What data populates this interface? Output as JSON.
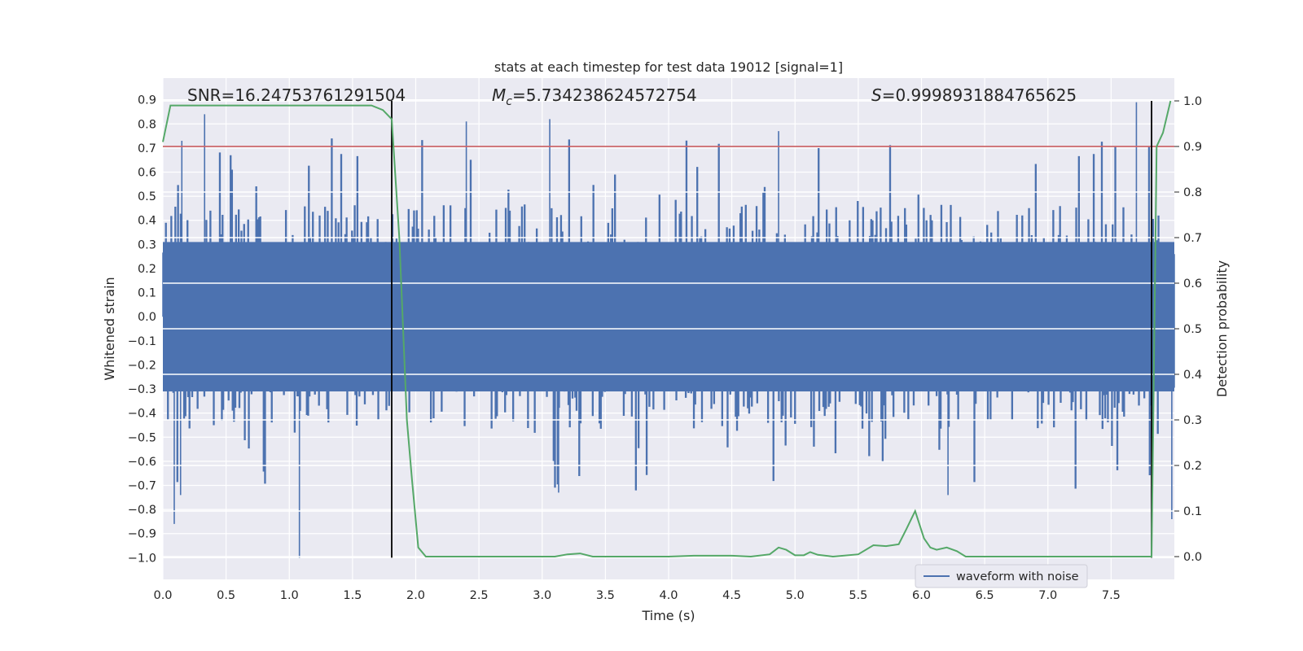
{
  "chart_data": {
    "type": "line",
    "title": "stats at each timestep for test data 19012 [signal=1]",
    "xlabel": "Time (s)",
    "ylabel_left": "Whitened strain",
    "ylabel_right": "Detection probability",
    "xlim": [
      0.0,
      8.0
    ],
    "ylim_left": [
      -1.09,
      0.99
    ],
    "ylim_right": [
      -0.05,
      1.05
    ],
    "xticks": [
      "0.0",
      "0.5",
      "1.0",
      "1.5",
      "2.0",
      "2.5",
      "3.0",
      "3.5",
      "4.0",
      "4.5",
      "5.0",
      "5.5",
      "6.0",
      "6.5",
      "7.0",
      "7.5"
    ],
    "yticks_left": [
      "0.9",
      "0.8",
      "0.7",
      "0.6",
      "0.5",
      "0.4",
      "0.3",
      "0.2",
      "0.1",
      "0.0",
      "−0.1",
      "−0.2",
      "−0.3",
      "−0.4",
      "−0.5",
      "−0.6",
      "−0.7",
      "−0.8",
      "−0.9",
      "−1.0"
    ],
    "yticks_right": [
      "1.0",
      "0.9",
      "0.8",
      "0.7",
      "0.6",
      "0.5",
      "0.4",
      "0.3",
      "0.2",
      "0.1",
      "0.0"
    ],
    "annotations": {
      "snr": "SNR=16.24753761291504",
      "mc_symbol": "M",
      "mc_sub": "c",
      "mc_value": "=5.734238624572754",
      "s_symbol": "S",
      "s_value": "=0.9998931884765625"
    },
    "threshold": {
      "value": 0.9,
      "axis": "right",
      "color": "#c44e52"
    },
    "detection_bounds": {
      "start": 1.81,
      "end": 7.82,
      "color": "#000000",
      "from_left": -1.0,
      "to_right": 1.0
    },
    "series": [
      {
        "name": "waveform with noise",
        "axis": "left",
        "color": "#4c72b0",
        "style": "dense-noise",
        "duration": 8.0,
        "core_amplitude": 0.31,
        "spike_max": 0.99,
        "spikes": [
          {
            "t": 0.09,
            "v": -0.86
          },
          {
            "t": 0.33,
            "v": 0.84
          },
          {
            "t": 1.08,
            "v": -1.0
          },
          {
            "t": 2.4,
            "v": 0.81
          },
          {
            "t": 3.06,
            "v": 0.82
          },
          {
            "t": 3.13,
            "v": -0.73
          },
          {
            "t": 7.7,
            "v": 0.89
          },
          {
            "t": 7.98,
            "v": -0.84
          },
          {
            "t": 4.87,
            "v": 0.77
          },
          {
            "t": 6.21,
            "v": -0.74
          },
          {
            "t": 0.15,
            "v": 0.73
          },
          {
            "t": 0.14,
            "v": -0.74
          }
        ]
      },
      {
        "name": "detection probability",
        "axis": "right",
        "color": "#55a868",
        "x": [
          0.0,
          0.06,
          0.15,
          0.3,
          0.5,
          0.8,
          1.0,
          1.3,
          1.5,
          1.65,
          1.74,
          1.81,
          1.87,
          1.93,
          1.97,
          2.02,
          2.08,
          2.2,
          2.5,
          2.8,
          3.1,
          3.2,
          3.3,
          3.4,
          3.6,
          3.8,
          4.0,
          4.2,
          4.5,
          4.65,
          4.8,
          4.87,
          4.93,
          5.0,
          5.07,
          5.12,
          5.18,
          5.3,
          5.5,
          5.62,
          5.72,
          5.82,
          5.88,
          5.95,
          6.02,
          6.07,
          6.12,
          6.2,
          6.28,
          6.35,
          6.5,
          6.7,
          7.0,
          7.2,
          7.5,
          7.7,
          7.82,
          7.86,
          7.91,
          7.97
        ],
        "y": [
          0.91,
          0.99,
          0.99,
          0.99,
          0.99,
          0.99,
          0.99,
          0.99,
          0.99,
          0.99,
          0.98,
          0.96,
          0.7,
          0.3,
          0.17,
          0.02,
          0.0,
          0.0,
          0.0,
          0.0,
          0.0,
          0.005,
          0.007,
          0.0,
          0.0,
          0.0,
          0.0,
          0.002,
          0.002,
          0.0,
          0.005,
          0.02,
          0.015,
          0.003,
          0.003,
          0.01,
          0.004,
          0.0,
          0.005,
          0.025,
          0.023,
          0.027,
          0.06,
          0.1,
          0.04,
          0.02,
          0.015,
          0.02,
          0.012,
          0.0,
          0.0,
          0.0,
          0.0,
          0.0,
          0.0,
          0.0,
          0.0,
          0.9,
          0.93,
          1.0
        ]
      }
    ],
    "legend": {
      "label": "waveform with noise",
      "location": "lower-right"
    }
  }
}
